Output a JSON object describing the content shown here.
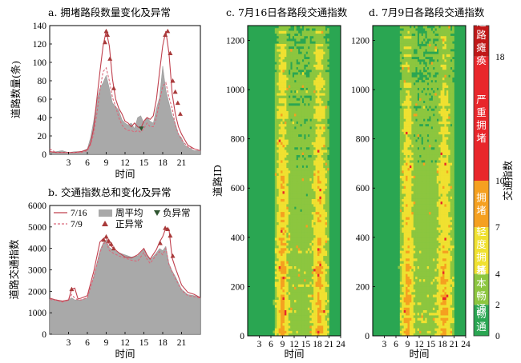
{
  "chart_data": [
    {
      "type": "line",
      "title": "a. 拥堵路段数量变化及异常",
      "xlabel": "时间",
      "ylabel": "道路数量(条)",
      "xlim": [
        0,
        24
      ],
      "ylim": [
        0,
        140
      ],
      "xticks": [
        "3",
        "6",
        "9",
        "12",
        "15",
        "18",
        "21"
      ],
      "yticks": [
        "0",
        "20",
        "40",
        "60",
        "80",
        "100",
        "120",
        "140"
      ],
      "x": [
        0,
        1,
        2,
        3,
        4,
        5,
        6,
        6.5,
        7,
        7.5,
        8,
        8.5,
        9,
        9.5,
        10,
        10.5,
        11,
        11.5,
        12,
        12.5,
        13,
        13.5,
        14,
        14.5,
        15,
        15.5,
        16,
        16.5,
        17,
        17.5,
        18,
        18.5,
        19,
        19.5,
        20,
        20.5,
        21,
        21.5,
        22,
        23,
        24
      ],
      "series": [
        {
          "name": "周平均",
          "values": [
            2,
            3,
            4,
            2,
            3,
            3,
            6,
            18,
            36,
            58,
            72,
            78,
            86,
            72,
            56,
            52,
            48,
            38,
            34,
            32,
            34,
            28,
            40,
            42,
            34,
            40,
            36,
            34,
            50,
            62,
            96,
            70,
            56,
            42,
            34,
            22,
            18,
            10,
            8,
            4,
            4
          ]
        },
        {
          "name": "7/16",
          "values": [
            3,
            2,
            2,
            2,
            2,
            3,
            5,
            12,
            28,
            60,
            90,
            118,
            134,
            118,
            82,
            60,
            50,
            44,
            36,
            34,
            30,
            34,
            30,
            28,
            36,
            40,
            38,
            42,
            60,
            90,
            118,
            134,
            110,
            66,
            44,
            30,
            22,
            16,
            10,
            6,
            4
          ]
        },
        {
          "name": "7/9",
          "values": [
            6,
            2,
            2,
            2,
            2,
            2,
            4,
            10,
            22,
            44,
            70,
            90,
            94,
            80,
            62,
            52,
            40,
            32,
            28,
            26,
            26,
            24,
            26,
            24,
            28,
            34,
            30,
            30,
            40,
            58,
            74,
            78,
            62,
            50,
            32,
            22,
            16,
            12,
            8,
            6,
            4
          ]
        }
      ],
      "anomalies_positive": [
        [
          9,
          134
        ],
        [
          9.2,
          130
        ],
        [
          8.8,
          122
        ],
        [
          9.6,
          104
        ],
        [
          10.2,
          72
        ],
        [
          18.4,
          130
        ],
        [
          18.8,
          134
        ],
        [
          19.2,
          110
        ],
        [
          19.6,
          80
        ],
        [
          20,
          68
        ],
        [
          20.4,
          56
        ],
        [
          20.8,
          44
        ]
      ],
      "anomalies_negative": [
        [
          14.6,
          28
        ]
      ]
    },
    {
      "type": "area",
      "title": "b. 交通指数总和变化及异常",
      "xlabel": "时间",
      "ylabel": "道路交通指数",
      "xlim": [
        0,
        24
      ],
      "ylim": [
        0,
        6000
      ],
      "xticks": [
        "3",
        "6",
        "9",
        "12",
        "15",
        "18",
        "21"
      ],
      "yticks": [
        "0",
        "1000",
        "2000",
        "3000",
        "4000",
        "5000",
        "6000"
      ],
      "x": [
        0,
        1,
        2,
        3,
        3.5,
        4,
        4.5,
        5,
        6,
        7,
        8,
        8.5,
        9,
        9.5,
        10,
        11,
        12,
        13,
        14,
        15,
        15.5,
        16,
        17,
        17.5,
        18,
        18.5,
        19,
        19.5,
        20,
        21,
        22,
        23,
        24
      ],
      "series": [
        {
          "name": "周平均",
          "values": [
            1640,
            1600,
            1560,
            1580,
            1700,
            1600,
            1590,
            1600,
            1700,
            2700,
            3900,
            4250,
            4400,
            4050,
            3950,
            3800,
            3700,
            3600,
            3650,
            3950,
            3700,
            3450,
            3800,
            4000,
            3900,
            4100,
            3300,
            2950,
            2700,
            2100,
            1850,
            1800,
            1700
          ]
        },
        {
          "name": "7/16",
          "values": [
            1680,
            1600,
            1540,
            1600,
            2100,
            2150,
            1640,
            1680,
            1800,
            2900,
            4300,
            4450,
            4500,
            4200,
            4050,
            3800,
            3600,
            3550,
            3700,
            4000,
            3700,
            3500,
            3950,
            4300,
            4550,
            4950,
            4900,
            3550,
            3100,
            2300,
            1950,
            1860,
            1700
          ]
        },
        {
          "name": "7/9",
          "values": [
            1620,
            1580,
            1500,
            1580,
            1850,
            1680,
            1600,
            1600,
            1700,
            2650,
            3800,
            4200,
            4300,
            3900,
            3800,
            3650,
            3550,
            3450,
            3400,
            3800,
            3500,
            3300,
            3700,
            3850,
            3700,
            4000,
            3250,
            2900,
            2600,
            2050,
            1800,
            1750,
            1680
          ]
        }
      ],
      "anomalies_positive": [
        [
          3.5,
          2100
        ],
        [
          8.6,
          4400
        ],
        [
          9,
          4550
        ],
        [
          9.4,
          4350
        ],
        [
          9.8,
          4200
        ],
        [
          10.2,
          4000
        ],
        [
          17.6,
          4250
        ],
        [
          18.4,
          4950
        ],
        [
          18.8,
          4900
        ],
        [
          19.2,
          4600
        ],
        [
          19.6,
          3650
        ]
      ],
      "legend": {
        "line_716": "7/16",
        "line_79": "7/9",
        "area": "周平均",
        "neg": "负异常",
        "pos": "正异常"
      }
    },
    {
      "type": "heatmap",
      "title": "c. 7月16日各路段交通指数",
      "xlabel": "时间",
      "ylabel": "道路ID",
      "xlim": [
        0,
        24
      ],
      "ylim": [
        0,
        1260
      ],
      "xticks": [
        "3",
        "6",
        "9",
        "12",
        "15",
        "18",
        "21",
        "24"
      ],
      "yticks": [
        "0",
        "200",
        "400",
        "600",
        "800",
        "1000",
        "1200"
      ]
    },
    {
      "type": "heatmap",
      "title": "d. 7月9日各路段交通指数",
      "xlabel": "时间",
      "ylabel": "",
      "xlim": [
        0,
        24
      ],
      "ylim": [
        0,
        1260
      ],
      "xticks": [
        "3",
        "6",
        "9",
        "12",
        "15",
        "18",
        "21",
        "24"
      ],
      "yticks": [
        "0",
        "200",
        "400",
        "600",
        "800",
        "1000",
        "1200"
      ]
    }
  ],
  "colorbar": {
    "label": "交通指数",
    "ticks": [
      "0",
      "2",
      "4",
      "7",
      "10",
      "18"
    ],
    "bands": [
      {
        "name": "畅通",
        "from": 0,
        "to": 2,
        "color": "#2aa652"
      },
      {
        "name": "基本畅通",
        "from": 2,
        "to": 4,
        "color": "#8cc63f"
      },
      {
        "name": "轻度拥堵",
        "from": 4,
        "to": 7,
        "color": "#f0e130"
      },
      {
        "name": "拥堵",
        "from": 7,
        "to": 10,
        "color": "#f5a020"
      },
      {
        "name": "严重拥堵",
        "from": 10,
        "to": 18,
        "color": "#e8262b"
      },
      {
        "name": "道路瘫痪",
        "from": 18,
        "to": 20,
        "color": "#c01818"
      }
    ],
    "band_labels": {
      "b0": "畅通",
      "b1": "基本畅通",
      "b2": "轻度拥堵",
      "b3": "拥堵",
      "b4": "严重拥堵",
      "b5": "道路瘫痪"
    }
  },
  "colors": {
    "avg_fill": "#a9a9a9",
    "line_716": "#c0404e",
    "line_79": "#d9697a",
    "pos_marker": "#a83a3a",
    "neg_marker": "#2f5530"
  }
}
